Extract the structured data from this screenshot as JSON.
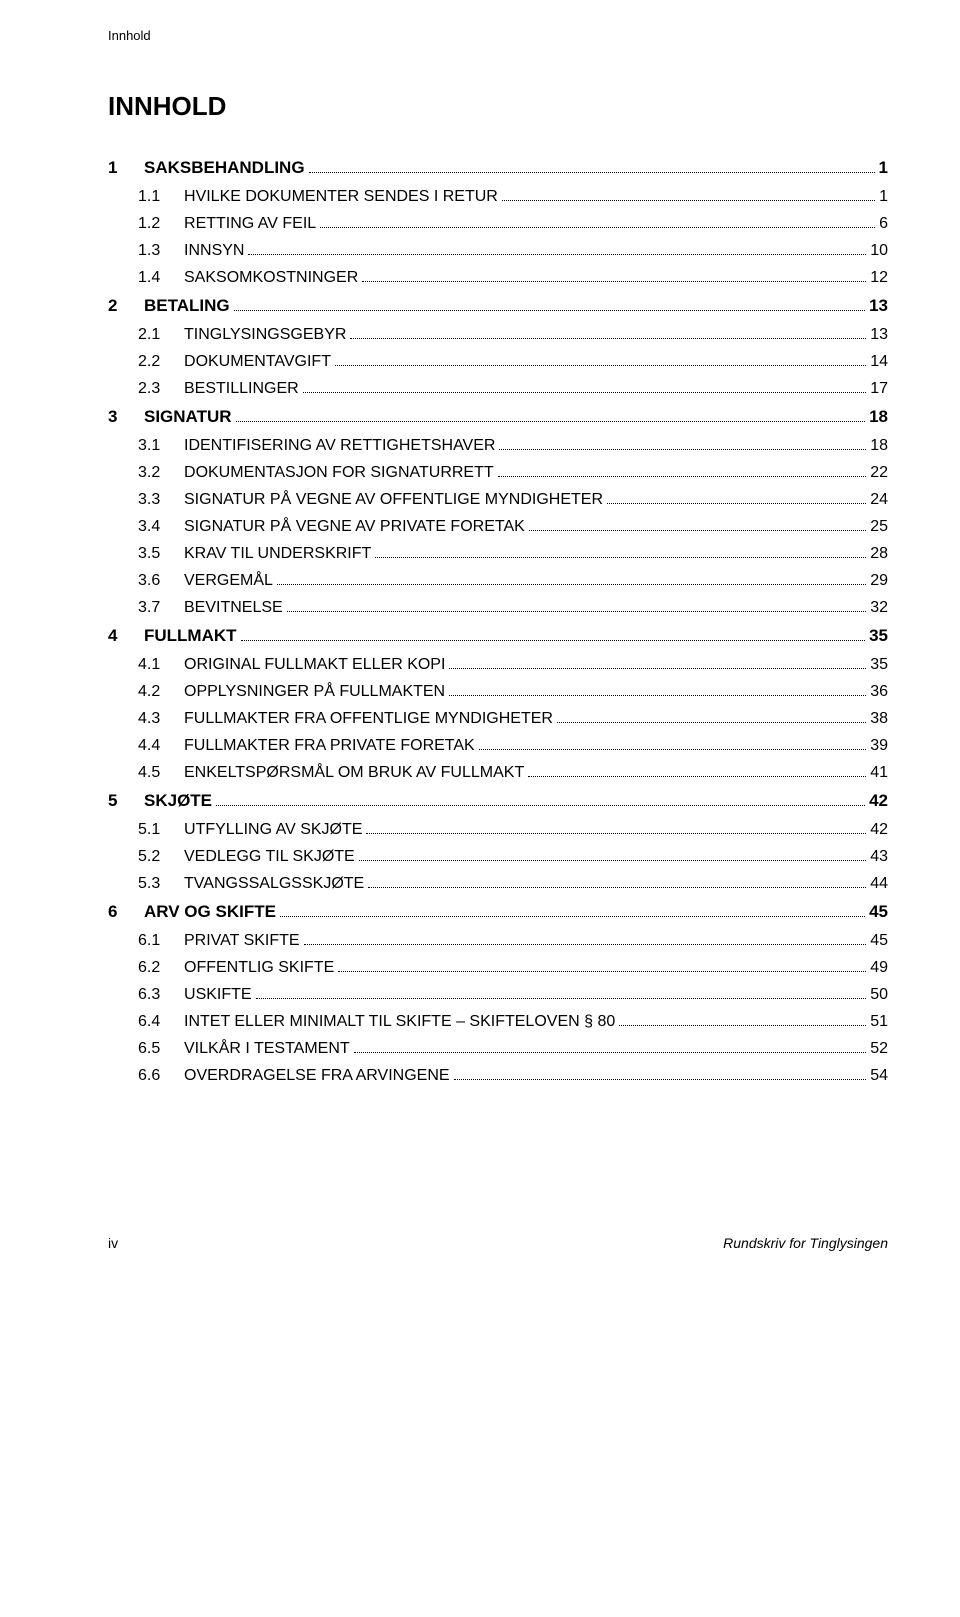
{
  "header_label": "Innhold",
  "main_title": "INNHOLD",
  "toc": [
    {
      "level": 1,
      "num": "1",
      "title_html": "SAKSBEHANDLING",
      "page": "1"
    },
    {
      "level": 2,
      "num": "1.1",
      "title_html": "H<span class='sc'>VILKE DOKUMENTER SENDES I RETUR</span>",
      "page": "1"
    },
    {
      "level": 2,
      "num": "1.2",
      "title_html": "R<span class='sc'>ETTING AV FEIL</span>",
      "page": "6"
    },
    {
      "level": 2,
      "num": "1.3",
      "title_html": "I<span class='sc'>NNSYN</span>",
      "page": "10"
    },
    {
      "level": 2,
      "num": "1.4",
      "title_html": "S<span class='sc'>AKSOMKOSTNINGER</span>",
      "page": "12"
    },
    {
      "level": 1,
      "num": "2",
      "title_html": "BETALING",
      "page": "13"
    },
    {
      "level": 2,
      "num": "2.1",
      "title_html": "T<span class='sc'>INGLYSINGSGEBYR</span>",
      "page": "13"
    },
    {
      "level": 2,
      "num": "2.2",
      "title_html": "D<span class='sc'>OKUMENTAVGIFT</span>",
      "page": "14"
    },
    {
      "level": 2,
      "num": "2.3",
      "title_html": "B<span class='sc'>ESTILLINGER</span>",
      "page": "17"
    },
    {
      "level": 1,
      "num": "3",
      "title_html": "SIGNATUR",
      "page": "18"
    },
    {
      "level": 2,
      "num": "3.1",
      "title_html": "I<span class='sc'>DENTIFISERING AV RETTIGHETSHAVER</span>",
      "page": "18"
    },
    {
      "level": 2,
      "num": "3.2",
      "title_html": "D<span class='sc'>OKUMENTASJON FOR SIGNATURRETT</span>",
      "page": "22"
    },
    {
      "level": 2,
      "num": "3.3",
      "title_html": "S<span class='sc'>IGNATUR PÅ VEGNE AV OFFENTLIGE MYNDIGHETER</span>",
      "page": "24"
    },
    {
      "level": 2,
      "num": "3.4",
      "title_html": "S<span class='sc'>IGNATUR PÅ VEGNE AV PRIVATE FORETAK</span>",
      "page": "25"
    },
    {
      "level": 2,
      "num": "3.5",
      "title_html": "K<span class='sc'>RAV TIL UNDERSKRIFT</span>",
      "page": "28"
    },
    {
      "level": 2,
      "num": "3.6",
      "title_html": "V<span class='sc'>ERGEMÅL</span>",
      "page": "29"
    },
    {
      "level": 2,
      "num": "3.7",
      "title_html": "B<span class='sc'>EVITNELSE</span>",
      "page": "32"
    },
    {
      "level": 1,
      "num": "4",
      "title_html": "FULLMAKT",
      "page": "35"
    },
    {
      "level": 2,
      "num": "4.1",
      "title_html": "O<span class='sc'>RIGINAL FULLMAKT ELLER KOPI</span>",
      "page": "35"
    },
    {
      "level": 2,
      "num": "4.2",
      "title_html": "O<span class='sc'>PPLYSNINGER PÅ FULLMAKTEN</span>",
      "page": "36"
    },
    {
      "level": 2,
      "num": "4.3",
      "title_html": "F<span class='sc'>ULLMAKTER FRA OFFENTLIGE MYNDIGHETER</span>",
      "page": "38"
    },
    {
      "level": 2,
      "num": "4.4",
      "title_html": "F<span class='sc'>ULLMAKTER FRA PRIVATE FORETAK</span>",
      "page": "39"
    },
    {
      "level": 2,
      "num": "4.5",
      "title_html": "E<span class='sc'>NKELTSPØRSMÅL OM BRUK AV FULLMAKT</span>",
      "page": "41"
    },
    {
      "level": 1,
      "num": "5",
      "title_html": "SKJØTE",
      "page": "42"
    },
    {
      "level": 2,
      "num": "5.1",
      "title_html": "U<span class='sc'>TFYLLING AV SKJØTE</span>",
      "page": "42"
    },
    {
      "level": 2,
      "num": "5.2",
      "title_html": "V<span class='sc'>EDLEGG TIL SKJØTE</span>",
      "page": "43"
    },
    {
      "level": 2,
      "num": "5.3",
      "title_html": "T<span class='sc'>VANGSSALGSSKJØTE</span>",
      "page": "44"
    },
    {
      "level": 1,
      "num": "6",
      "title_html": "ARV OG SKIFTE",
      "page": "45"
    },
    {
      "level": 2,
      "num": "6.1",
      "title_html": "P<span class='sc'>RIVAT SKIFTE</span>",
      "page": "45"
    },
    {
      "level": 2,
      "num": "6.2",
      "title_html": "O<span class='sc'>FFENTLIG SKIFTE</span>",
      "page": "49"
    },
    {
      "level": 2,
      "num": "6.3",
      "title_html": "U<span class='sc'>SKIFTE</span>",
      "page": "50"
    },
    {
      "level": 2,
      "num": "6.4",
      "title_html": "I<span class='sc'>NTET ELLER MINIMALT TIL SKIFTE – SKIFTELOVEN</span> § 80",
      "page": "51"
    },
    {
      "level": 2,
      "num": "6.5",
      "title_html": "V<span class='sc'>ILKÅR I TESTAMENT</span>",
      "page": "52"
    },
    {
      "level": 2,
      "num": "6.6",
      "title_html": "O<span class='sc'>VERDRAGELSE FRA ARVINGENE</span>",
      "page": "54"
    }
  ],
  "footer_left": "iv",
  "footer_right": "Rundskriv for Tinglysingen"
}
